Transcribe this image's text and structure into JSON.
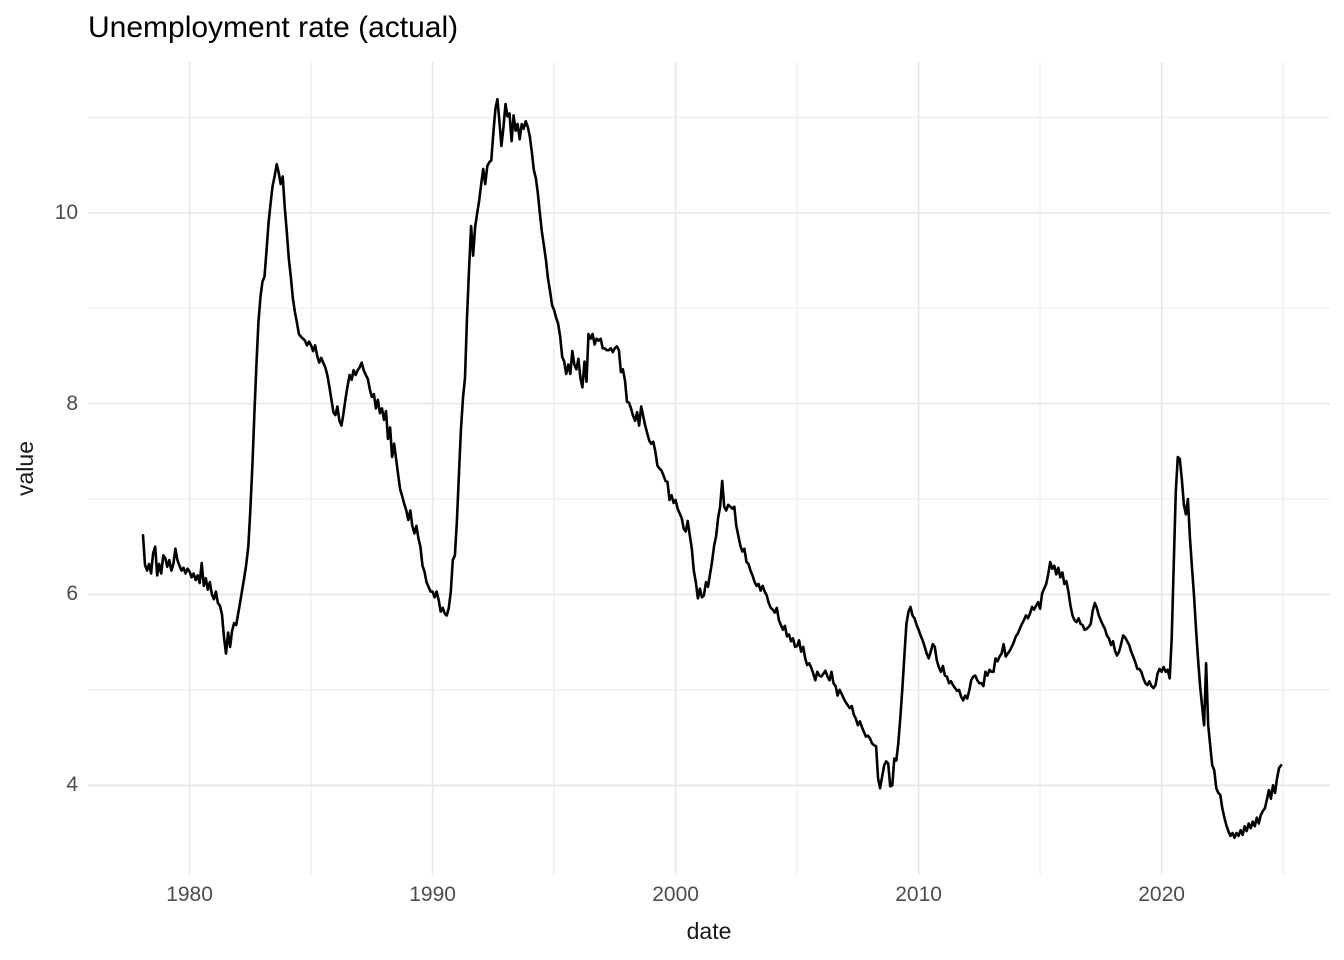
{
  "title": "Unemployment rate (actual)",
  "axes": {
    "x_label": "date",
    "y_label": "value",
    "x_ticks": [
      "1980",
      "1990",
      "2000",
      "2010",
      "2020"
    ],
    "y_ticks": [
      "10",
      "8",
      "6",
      "4"
    ],
    "y_tick_values_display": [
      10,
      8,
      6,
      4
    ]
  },
  "chart_data": {
    "type": "line",
    "title": "Unemployment rate (actual)",
    "xlabel": "date",
    "ylabel": "value",
    "legend_position": "none",
    "grid": true,
    "background": "#ffffff",
    "line_color": "#000000",
    "major_grid_color": "#e6e6e6",
    "minor_grid_color": "#ededed",
    "tick_text_color": "#4d4d4d",
    "frequency": "monthly",
    "x_start_year": 1978,
    "x_start_month": 2,
    "x_end_year": 2024,
    "x_end_month": 11,
    "x_tick_years": [
      1980,
      1990,
      2000,
      2010,
      2020
    ],
    "x_minor_years": [
      1985,
      1995,
      2005,
      2015,
      2025
    ],
    "y_tick_values": [
      4,
      6,
      8,
      10
    ],
    "y_minor_values": [
      3,
      5,
      7,
      9,
      11
    ],
    "xlim": [
      1975.82,
      2026.93
    ],
    "ylim": [
      3.06,
      11.58
    ],
    "series": [
      {
        "name": "unemployment_rate_actual",
        "values": [
          6.62,
          6.31,
          6.25,
          6.32,
          6.22,
          6.43,
          6.5,
          6.2,
          6.32,
          6.22,
          6.41,
          6.38,
          6.29,
          6.36,
          6.25,
          6.32,
          6.48,
          6.36,
          6.3,
          6.25,
          6.28,
          6.22,
          6.27,
          6.24,
          6.18,
          6.22,
          6.15,
          6.2,
          6.12,
          6.33,
          6.09,
          6.17,
          6.05,
          6.13,
          6.0,
          5.95,
          6.03,
          5.91,
          5.88,
          5.79,
          5.55,
          5.38,
          5.6,
          5.45,
          5.62,
          5.7,
          5.68,
          5.8,
          5.92,
          6.05,
          6.18,
          6.32,
          6.5,
          6.88,
          7.35,
          7.9,
          8.4,
          8.85,
          9.12,
          9.28,
          9.33,
          9.6,
          9.9,
          10.1,
          10.28,
          10.38,
          10.51,
          10.42,
          10.3,
          10.38,
          10.05,
          9.8,
          9.52,
          9.33,
          9.1,
          8.96,
          8.85,
          8.73,
          8.7,
          8.68,
          8.66,
          8.61,
          8.65,
          8.61,
          8.55,
          8.61,
          8.5,
          8.43,
          8.48,
          8.43,
          8.38,
          8.3,
          8.18,
          8.05,
          7.91,
          7.88,
          7.97,
          7.82,
          7.77,
          7.9,
          8.05,
          8.18,
          8.3,
          8.25,
          8.35,
          8.3,
          8.35,
          8.38,
          8.43,
          8.35,
          8.3,
          8.26,
          8.15,
          8.07,
          8.1,
          7.95,
          8.04,
          7.9,
          7.95,
          7.83,
          7.92,
          7.63,
          7.75,
          7.44,
          7.58,
          7.42,
          7.25,
          7.1,
          7.03,
          6.95,
          6.88,
          6.78,
          6.88,
          6.72,
          6.64,
          6.72,
          6.59,
          6.5,
          6.3,
          6.24,
          6.13,
          6.08,
          6.03,
          6.03,
          5.97,
          6.03,
          5.94,
          5.82,
          5.86,
          5.8,
          5.78,
          5.86,
          6.03,
          6.36,
          6.41,
          6.77,
          7.25,
          7.72,
          8.06,
          8.27,
          8.9,
          9.4,
          9.86,
          9.55,
          9.85,
          9.99,
          10.13,
          10.3,
          10.46,
          10.3,
          10.49,
          10.53,
          10.55,
          10.83,
          11.09,
          11.19,
          10.96,
          10.7,
          10.9,
          11.14,
          11.01,
          11.04,
          10.75,
          11.02,
          10.86,
          10.93,
          10.77,
          10.93,
          10.88,
          10.96,
          10.9,
          10.8,
          10.64,
          10.45,
          10.36,
          10.2,
          9.99,
          9.8,
          9.65,
          9.5,
          9.31,
          9.18,
          9.03,
          8.98,
          8.9,
          8.84,
          8.7,
          8.49,
          8.44,
          8.31,
          8.41,
          8.31,
          8.55,
          8.41,
          8.36,
          8.47,
          8.27,
          8.17,
          8.44,
          8.23,
          8.73,
          8.68,
          8.73,
          8.62,
          8.68,
          8.66,
          8.68,
          8.58,
          8.58,
          8.56,
          8.56,
          8.58,
          8.54,
          8.58,
          8.6,
          8.56,
          8.33,
          8.36,
          8.24,
          8.02,
          8.01,
          7.95,
          7.87,
          7.82,
          7.91,
          7.77,
          7.97,
          7.87,
          7.77,
          7.69,
          7.61,
          7.58,
          7.6,
          7.5,
          7.35,
          7.32,
          7.3,
          7.25,
          7.19,
          7.18,
          6.99,
          7.04,
          6.96,
          6.99,
          6.9,
          6.85,
          6.8,
          6.69,
          6.66,
          6.77,
          6.62,
          6.48,
          6.25,
          6.13,
          5.96,
          6.06,
          5.97,
          5.99,
          6.13,
          6.08,
          6.21,
          6.34,
          6.51,
          6.61,
          6.8,
          6.92,
          7.19,
          6.92,
          6.88,
          6.94,
          6.92,
          6.9,
          6.92,
          6.72,
          6.61,
          6.51,
          6.45,
          6.48,
          6.34,
          6.32,
          6.25,
          6.2,
          6.13,
          6.09,
          6.11,
          6.04,
          6.09,
          6.03,
          5.99,
          5.91,
          5.86,
          5.84,
          5.81,
          5.86,
          5.73,
          5.68,
          5.63,
          5.67,
          5.56,
          5.58,
          5.51,
          5.54,
          5.45,
          5.46,
          5.52,
          5.4,
          5.45,
          5.33,
          5.26,
          5.28,
          5.23,
          5.17,
          5.1,
          5.19,
          5.15,
          5.14,
          5.17,
          5.2,
          5.14,
          5.1,
          5.19,
          5.07,
          5.04,
          4.94,
          5.0,
          4.96,
          4.91,
          4.87,
          4.84,
          4.81,
          4.83,
          4.74,
          4.7,
          4.63,
          4.67,
          4.61,
          4.56,
          4.51,
          4.52,
          4.49,
          4.44,
          4.42,
          4.41,
          4.07,
          3.97,
          4.09,
          4.21,
          4.25,
          4.23,
          3.99,
          4.0,
          4.28,
          4.26,
          4.44,
          4.72,
          5.02,
          5.36,
          5.69,
          5.82,
          5.87,
          5.78,
          5.75,
          5.68,
          5.63,
          5.57,
          5.52,
          5.45,
          5.38,
          5.33,
          5.4,
          5.48,
          5.45,
          5.31,
          5.24,
          5.19,
          5.25,
          5.15,
          5.14,
          5.07,
          5.09,
          5.05,
          5.02,
          4.99,
          5.0,
          4.93,
          4.89,
          4.94,
          4.91,
          4.99,
          5.1,
          5.14,
          5.15,
          5.1,
          5.07,
          5.07,
          5.04,
          5.19,
          5.15,
          5.21,
          5.19,
          5.19,
          5.33,
          5.3,
          5.35,
          5.38,
          5.48,
          5.35,
          5.38,
          5.41,
          5.45,
          5.5,
          5.56,
          5.59,
          5.64,
          5.69,
          5.73,
          5.78,
          5.75,
          5.8,
          5.87,
          5.84,
          5.88,
          5.92,
          5.85,
          6.01,
          6.06,
          6.11,
          6.21,
          6.34,
          6.27,
          6.3,
          6.21,
          6.28,
          6.18,
          6.23,
          6.11,
          6.14,
          6.03,
          5.88,
          5.78,
          5.73,
          5.71,
          5.75,
          5.69,
          5.68,
          5.63,
          5.64,
          5.66,
          5.69,
          5.83,
          5.91,
          5.86,
          5.78,
          5.73,
          5.68,
          5.64,
          5.57,
          5.54,
          5.47,
          5.51,
          5.41,
          5.36,
          5.4,
          5.48,
          5.57,
          5.55,
          5.51,
          5.47,
          5.4,
          5.35,
          5.29,
          5.22,
          5.22,
          5.19,
          5.12,
          5.07,
          5.05,
          5.09,
          5.04,
          5.02,
          5.05,
          5.17,
          5.22,
          5.19,
          5.24,
          5.19,
          5.21,
          5.12,
          5.54,
          6.3,
          7.08,
          7.44,
          7.42,
          7.21,
          6.94,
          6.84,
          7.0,
          6.6,
          6.28,
          5.99,
          5.64,
          5.33,
          5.04,
          4.83,
          4.63,
          5.28,
          4.63,
          4.42,
          4.21,
          4.16,
          3.97,
          3.92,
          3.9,
          3.76,
          3.66,
          3.58,
          3.52,
          3.47,
          3.5,
          3.45,
          3.5,
          3.47,
          3.53,
          3.48,
          3.57,
          3.52,
          3.6,
          3.55,
          3.62,
          3.57,
          3.66,
          3.6,
          3.69,
          3.73,
          3.76,
          3.85,
          3.95,
          3.86,
          4.0,
          3.92,
          4.07,
          4.18,
          4.21
        ]
      }
    ]
  }
}
